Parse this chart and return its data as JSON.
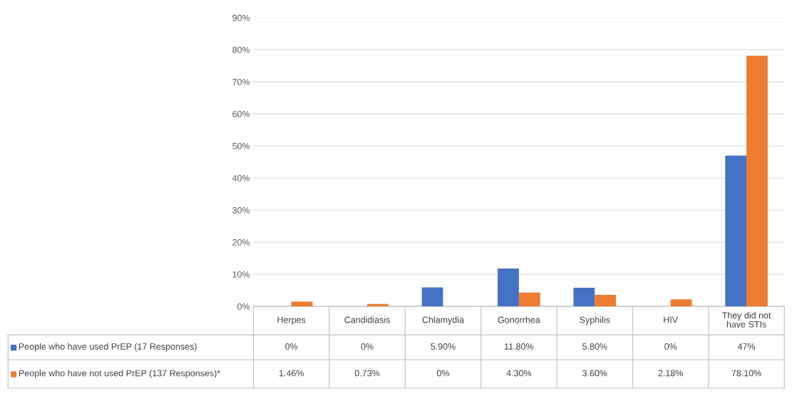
{
  "chart_data": {
    "type": "bar",
    "categories": [
      "Herpes",
      "Candidiasis",
      "Chlamydia",
      "Gonorrhea",
      "Syphilis",
      "HIV",
      "They did not have STIs"
    ],
    "series": [
      {
        "name": "People who have used PrEP (17 Responses)",
        "color": "#4472c4",
        "values": [
          0,
          0,
          5.9,
          11.8,
          5.8,
          0,
          47
        ],
        "value_labels": [
          "0%",
          "0%",
          "5.90%",
          "11.80%",
          "5.80%",
          "0%",
          "47%"
        ]
      },
      {
        "name": "People who have not used PrEP (137 Responses)*",
        "color": "#ed7d31",
        "values": [
          1.46,
          0.73,
          0,
          4.3,
          3.6,
          2.18,
          78.1
        ],
        "value_labels": [
          "1.46%",
          "0.73%",
          "0%",
          "4.30%",
          "3.60%",
          "2.18%",
          "78.10%"
        ]
      }
    ],
    "ylim": [
      0,
      90
    ],
    "yticks": [
      {
        "value": 0,
        "label": "0%"
      },
      {
        "value": 10,
        "label": "10%"
      },
      {
        "value": 20,
        "label": "20%"
      },
      {
        "value": 30,
        "label": "30%"
      },
      {
        "value": 40,
        "label": "40%"
      },
      {
        "value": 50,
        "label": "50%"
      },
      {
        "value": 60,
        "label": "60%"
      },
      {
        "value": 70,
        "label": "70%"
      },
      {
        "value": 80,
        "label": "80%"
      },
      {
        "value": 90,
        "label": "90%"
      }
    ],
    "grid": "y",
    "legend": "bottom left"
  }
}
